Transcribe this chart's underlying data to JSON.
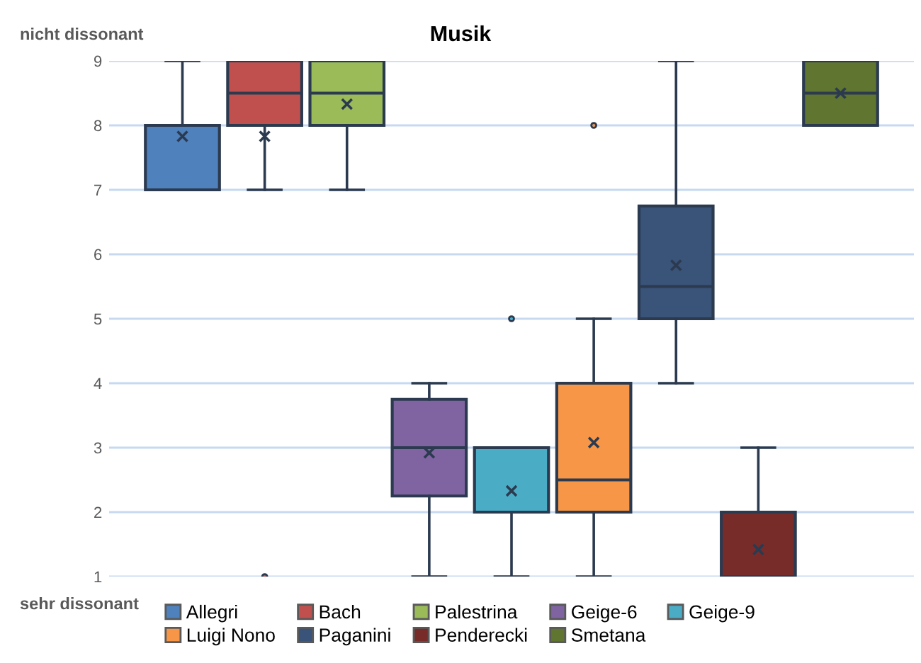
{
  "chart_data": {
    "type": "box",
    "title": "Musik",
    "categories": [
      null
    ],
    "series": [
      {
        "name": "Allegri",
        "color": "#4f81bd",
        "boxes": [
          {
            "low": 7,
            "q1": 7,
            "median": 8,
            "q3": 8,
            "high": 9,
            "mean": 7.83
          }
        ]
      },
      {
        "name": "Bach",
        "color": "#c0504d",
        "boxes": [
          {
            "low": 7,
            "q1": 8,
            "median": 8.5,
            "q3": 9,
            "high": 9,
            "mean": 7.83,
            "outliers": [
              1
            ]
          }
        ]
      },
      {
        "name": "Palestrina",
        "color": "#9bbb59",
        "boxes": [
          {
            "low": 7,
            "q1": 8,
            "median": 8.5,
            "q3": 9,
            "high": 9,
            "mean": 8.33
          }
        ]
      },
      {
        "name": "Geige-6",
        "color": "#8064a2",
        "boxes": [
          {
            "low": 1,
            "q1": 2.25,
            "median": 3,
            "q3": 3.75,
            "high": 4,
            "mean": 2.92
          }
        ]
      },
      {
        "name": "Geige-9",
        "color": "#4bacc6",
        "boxes": [
          {
            "low": 1,
            "q1": 2,
            "median": 2,
            "q3": 3,
            "high": 3,
            "mean": 2.33,
            "outliers": [
              5
            ]
          }
        ]
      },
      {
        "name": "Luigi Nono",
        "color": "#f79646",
        "boxes": [
          {
            "low": 1,
            "q1": 2,
            "median": 2.5,
            "q3": 4,
            "high": 5,
            "mean": 3.08,
            "outliers": [
              8
            ]
          }
        ]
      },
      {
        "name": "Paganini",
        "color": "#3a5378",
        "boxes": [
          {
            "low": 4,
            "q1": 5,
            "median": 5.5,
            "q3": 6.75,
            "high": 9,
            "mean": 5.83
          }
        ]
      },
      {
        "name": "Penderecki",
        "color": "#772c2a",
        "boxes": [
          {
            "low": 1,
            "q1": 1,
            "median": 1,
            "q3": 2,
            "high": 3,
            "mean": 1.42
          }
        ]
      },
      {
        "name": "Smetana",
        "color": "#5f7530",
        "boxes": [
          {
            "low": 8,
            "q1": 8,
            "median": 8.5,
            "q3": 9,
            "high": 9,
            "mean": 8.5
          }
        ]
      }
    ],
    "ylim": [
      1,
      9
    ],
    "yticks": [
      1,
      2,
      3,
      4,
      5,
      6,
      7,
      8,
      9
    ],
    "grid": "y",
    "legend": "bottom",
    "tick_labels": "y",
    "annotations": [
      "nicht dissonant",
      "sehr dissonant"
    ]
  }
}
